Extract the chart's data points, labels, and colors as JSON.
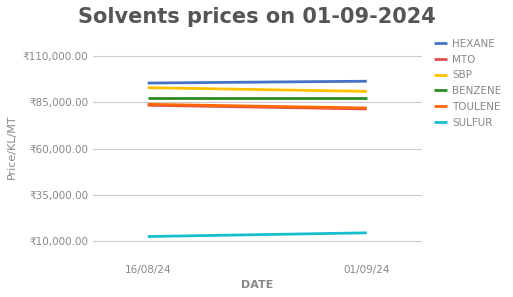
{
  "title": "Solvents prices on 01-09-2024",
  "xlabel": "DATE",
  "ylabel": "Price/KL/MT",
  "dates": [
    "16/08/24",
    "01/09/24"
  ],
  "series": [
    {
      "name": "HEXANE",
      "color": "#4472C4",
      "values": [
        95500,
        96500
      ]
    },
    {
      "name": "MTO",
      "color": "#E05050",
      "values": [
        83500,
        81500
      ]
    },
    {
      "name": "SBP",
      "color": "#FFC000",
      "values": [
        93000,
        91000
      ]
    },
    {
      "name": "BENZENE",
      "color": "#2E8B20",
      "values": [
        87500,
        87500
      ]
    },
    {
      "name": "TOULENE",
      "color": "#FF6600",
      "values": [
        84000,
        82000
      ]
    },
    {
      "name": "SULFUR",
      "color": "#17BECF",
      "values": [
        12500,
        14500
      ]
    }
  ],
  "yticks": [
    10000,
    35000,
    60000,
    85000,
    110000
  ],
  "ylim": [
    0,
    122000
  ],
  "xlim": [
    -0.25,
    1.25
  ],
  "background_color": "#ffffff",
  "title_fontsize": 15,
  "title_color": "#555555",
  "tick_color": "#888888",
  "grid_color": "#CCCCCC",
  "legend_fontsize": 7.5,
  "axis_label_fontsize": 8,
  "tick_fontsize": 7.5
}
